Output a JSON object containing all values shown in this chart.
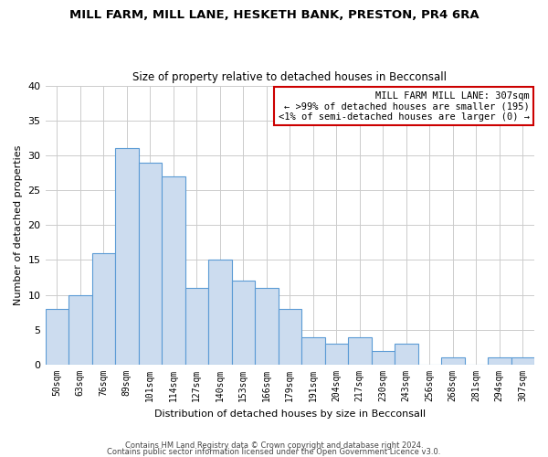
{
  "title": "MILL FARM, MILL LANE, HESKETH BANK, PRESTON, PR4 6RA",
  "subtitle": "Size of property relative to detached houses in Becconsall",
  "xlabel": "Distribution of detached houses by size in Becconsall",
  "ylabel": "Number of detached properties",
  "bar_labels": [
    "50sqm",
    "63sqm",
    "76sqm",
    "89sqm",
    "101sqm",
    "114sqm",
    "127sqm",
    "140sqm",
    "153sqm",
    "166sqm",
    "179sqm",
    "191sqm",
    "204sqm",
    "217sqm",
    "230sqm",
    "243sqm",
    "256sqm",
    "268sqm",
    "281sqm",
    "294sqm",
    "307sqm"
  ],
  "bar_heights": [
    8,
    10,
    16,
    31,
    29,
    27,
    11,
    15,
    12,
    11,
    8,
    4,
    3,
    4,
    2,
    3,
    0,
    1,
    0,
    1,
    1
  ],
  "bar_color": "#ccdcef",
  "bar_edge_color": "#5b9bd5",
  "annotation_title": "MILL FARM MILL LANE: 307sqm",
  "annotation_line1": "← >99% of detached houses are smaller (195)",
  "annotation_line2": "<1% of semi-detached houses are larger (0) →",
  "annotation_box_edge_color": "#cc0000",
  "ylim": [
    0,
    40
  ],
  "yticks": [
    0,
    5,
    10,
    15,
    20,
    25,
    30,
    35,
    40
  ],
  "footer1": "Contains HM Land Registry data © Crown copyright and database right 2024.",
  "footer2": "Contains public sector information licensed under the Open Government Licence v3.0.",
  "bg_color": "#ffffff",
  "grid_color": "#cccccc",
  "title_fontsize": 9.5,
  "subtitle_fontsize": 8.5,
  "axis_label_fontsize": 8,
  "tick_fontsize": 7,
  "annotation_fontsize": 7.5,
  "footer_fontsize": 6
}
